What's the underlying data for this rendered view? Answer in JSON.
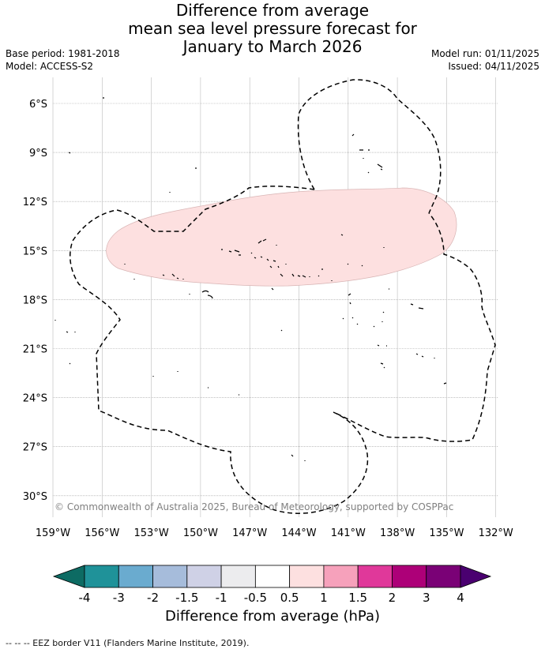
{
  "header": {
    "title_lines": [
      "Difference from average",
      "mean sea level pressure forecast for",
      "January to March 2026"
    ],
    "base_period": "Base period: 1981-2018",
    "model": "Model: ACCESS-S2",
    "model_run": "Model run: 01/11/2025",
    "issued": "Issued: 04/11/2025"
  },
  "map": {
    "lat_labels": [
      "6°S",
      "9°S",
      "12°S",
      "15°S",
      "18°S",
      "21°S",
      "24°S",
      "27°S",
      "30°S"
    ],
    "lon_labels": [
      "159°W",
      "156°W",
      "153°W",
      "150°W",
      "147°W",
      "144°W",
      "141°W",
      "138°W",
      "135°W",
      "132°W"
    ],
    "copyright": "© Commonwealth of Australia 2025, Bureau of Meteorology, supported by COSPPac",
    "anomaly_region_category": "0.5 to 1 hPa"
  },
  "colorbar": {
    "title": "Difference from average (hPa)",
    "ticks": [
      "-4",
      "-3",
      "-2",
      "-1.5",
      "-1",
      "-0.5",
      "0.5",
      "1",
      "1.5",
      "2",
      "3",
      "4"
    ],
    "colors": [
      "#0d6b63",
      "#1f9299",
      "#6aabcf",
      "#a6bcdb",
      "#cfd1e6",
      "#ececee",
      "#ffffff",
      "#fde0e0",
      "#f6a1bb",
      "#e0389a",
      "#ad0078",
      "#7a0176",
      "#4a0070"
    ]
  },
  "footer": {
    "legend_note": "--  --  -- EEZ border V11 (Flanders Marine Institute, 2019)."
  }
}
